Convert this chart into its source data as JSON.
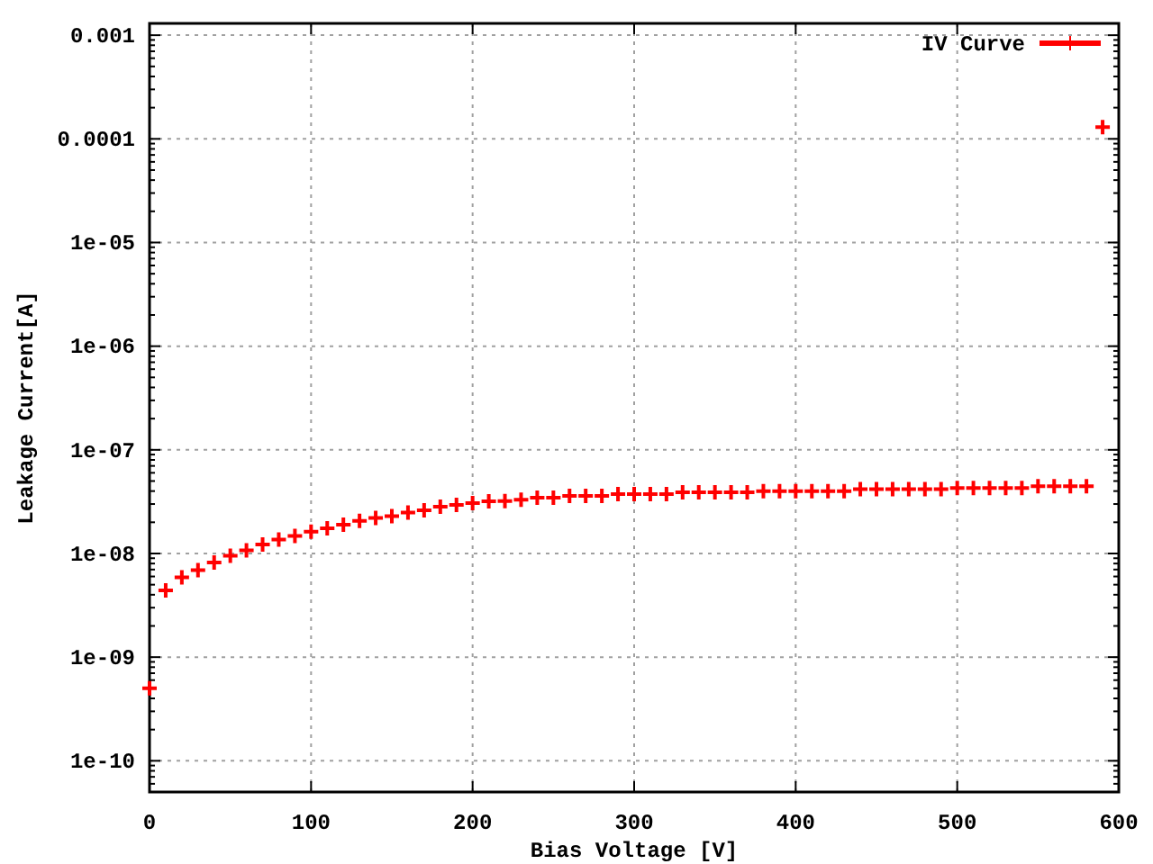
{
  "chart_data": {
    "type": "scatter",
    "xlabel": "Bias Voltage [V]",
    "ylabel": "Leakage Current[A]",
    "log": "y",
    "grid": true,
    "legend": "top right",
    "marker": "cross",
    "xlim": [
      0,
      600
    ],
    "xticks": [
      0,
      100,
      200,
      300,
      400,
      500,
      600
    ],
    "ylim": [
      5e-11,
      0.0013
    ],
    "yticks": [
      {
        "value": 1e-10,
        "label": "1e-10"
      },
      {
        "value": 1e-09,
        "label": "1e-09"
      },
      {
        "value": 1e-08,
        "label": "1e-08"
      },
      {
        "value": 1e-07,
        "label": "1e-07"
      },
      {
        "value": 1e-06,
        "label": "1e-06"
      },
      {
        "value": 1e-05,
        "label": "1e-05"
      },
      0.0001,
      0.001
    ],
    "series": [
      {
        "name": "IV Curve",
        "color": "#ff0000",
        "x": [
          0,
          10,
          20,
          30,
          40,
          50,
          60,
          70,
          80,
          90,
          100,
          110,
          120,
          130,
          140,
          150,
          160,
          170,
          180,
          190,
          200,
          210,
          220,
          230,
          240,
          250,
          260,
          270,
          280,
          290,
          300,
          310,
          320,
          330,
          340,
          350,
          360,
          370,
          380,
          390,
          400,
          410,
          420,
          430,
          440,
          450,
          460,
          470,
          480,
          490,
          500,
          510,
          520,
          530,
          540,
          550,
          560,
          570,
          580,
          590
        ],
        "values": [
          5e-10,
          4.4e-09,
          5.9e-09,
          6.9e-09,
          8.2e-09,
          9.5e-09,
          1.07e-08,
          1.22e-08,
          1.36e-08,
          1.48e-08,
          1.62e-08,
          1.75e-08,
          1.9e-08,
          2.06e-08,
          2.2e-08,
          2.29e-08,
          2.48e-08,
          2.61e-08,
          2.83e-08,
          2.94e-08,
          3.06e-08,
          3.19e-08,
          3.2e-08,
          3.3e-08,
          3.45e-08,
          3.45e-08,
          3.6e-08,
          3.6e-08,
          3.6e-08,
          3.74e-08,
          3.74e-08,
          3.74e-08,
          3.74e-08,
          3.9e-08,
          3.9e-08,
          3.9e-08,
          3.9e-08,
          3.9e-08,
          4e-08,
          4e-08,
          4e-08,
          4e-08,
          4e-08,
          4e-08,
          4.17e-08,
          4.17e-08,
          4.17e-08,
          4.17e-08,
          4.17e-08,
          4.17e-08,
          4.28e-08,
          4.28e-08,
          4.28e-08,
          4.28e-08,
          4.28e-08,
          4.45e-08,
          4.45e-08,
          4.45e-08,
          4.45e-08,
          0.00013
        ]
      }
    ]
  }
}
